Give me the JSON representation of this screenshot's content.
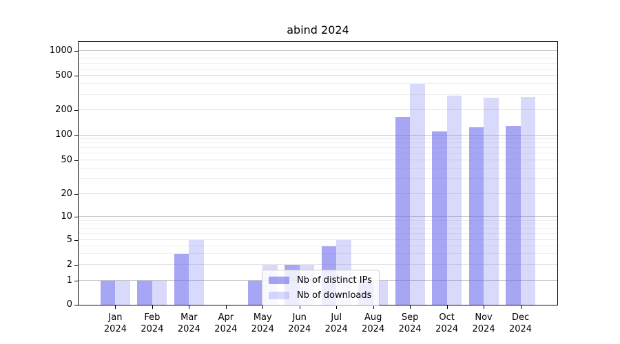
{
  "title": "abind 2024",
  "legend": {
    "items": [
      {
        "label": "Nb of distinct IPs",
        "color": "rgba(102,102,238,0.58)"
      },
      {
        "label": "Nb of downloads",
        "color": "rgba(102,102,238,0.25)"
      }
    ]
  },
  "axes": {
    "y_ticks": [
      0,
      1,
      2,
      5,
      10,
      20,
      50,
      100,
      200,
      500,
      1000
    ],
    "x_months": [
      "Jan",
      "Feb",
      "Mar",
      "Apr",
      "May",
      "Jun",
      "Jul",
      "Aug",
      "Sep",
      "Oct",
      "Nov",
      "Dec"
    ],
    "x_year": "2024"
  },
  "chart_data": {
    "type": "bar",
    "title": "abind 2024",
    "categories": [
      "Jan 2024",
      "Feb 2024",
      "Mar 2024",
      "Apr 2024",
      "May 2024",
      "Jun 2024",
      "Jul 2024",
      "Aug 2024",
      "Sep 2024",
      "Oct 2024",
      "Nov 2024",
      "Dec 2024"
    ],
    "series": [
      {
        "name": "Nb of distinct IPs",
        "color": "rgba(102,102,238,0.58)",
        "values": [
          1,
          1,
          3,
          0,
          1,
          2,
          4,
          1,
          165,
          110,
          125,
          128
        ]
      },
      {
        "name": "Nb of downloads",
        "color": "rgba(102,102,238,0.25)",
        "values": [
          1,
          1,
          5,
          0,
          2,
          2,
          5,
          1,
          400,
          295,
          275,
          285
        ]
      }
    ],
    "xlabel": "",
    "ylabel": "",
    "yscale": "asinh-log",
    "yticks": [
      0,
      1,
      2,
      5,
      10,
      20,
      50,
      100,
      200,
      500,
      1000
    ],
    "ylim": [
      0,
      1270
    ],
    "grid": true,
    "legend_position": "inside-bottom-center"
  }
}
